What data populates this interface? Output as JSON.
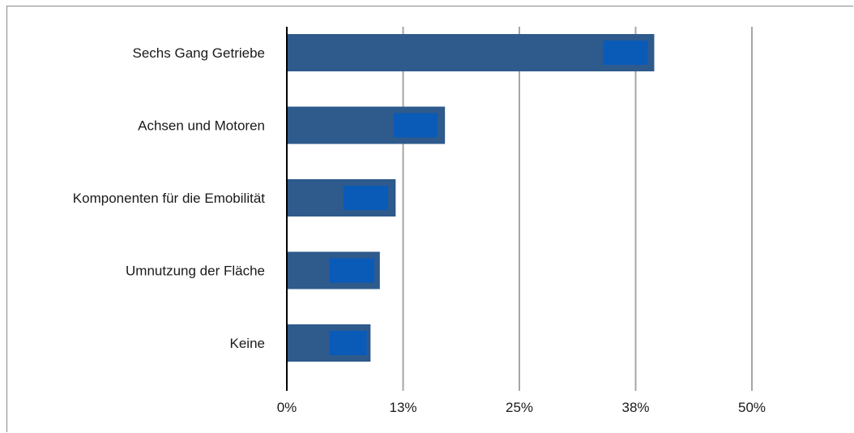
{
  "chart_data": {
    "type": "bar",
    "orientation": "horizontal",
    "categories": [
      "Sechs Gang Getriebe",
      "Achsen und Motoren",
      "Komponenten für die Emobilität",
      "Umnutzung der Fläche",
      "Keine"
    ],
    "values": [
      39.5,
      17,
      11.7,
      10,
      9
    ],
    "inner_marker": {
      "start": [
        34,
        11.5,
        6.1,
        4.6,
        4.6
      ],
      "end": [
        38.8,
        16.2,
        10.9,
        9.4,
        8.6
      ]
    },
    "x_ticks": [
      "0%",
      "13%",
      "25%",
      "38%",
      "50%"
    ],
    "x_tick_values": [
      0,
      12.5,
      25,
      37.5,
      50
    ],
    "xlim": [
      0,
      50
    ],
    "grid": true,
    "legend": "none",
    "title": "",
    "xlabel": "",
    "ylabel": "",
    "colors": {
      "bar": "#2e5a8c",
      "inner": "#0a5bb8",
      "grid": "#a6a6a6",
      "axis": "#000000"
    }
  }
}
